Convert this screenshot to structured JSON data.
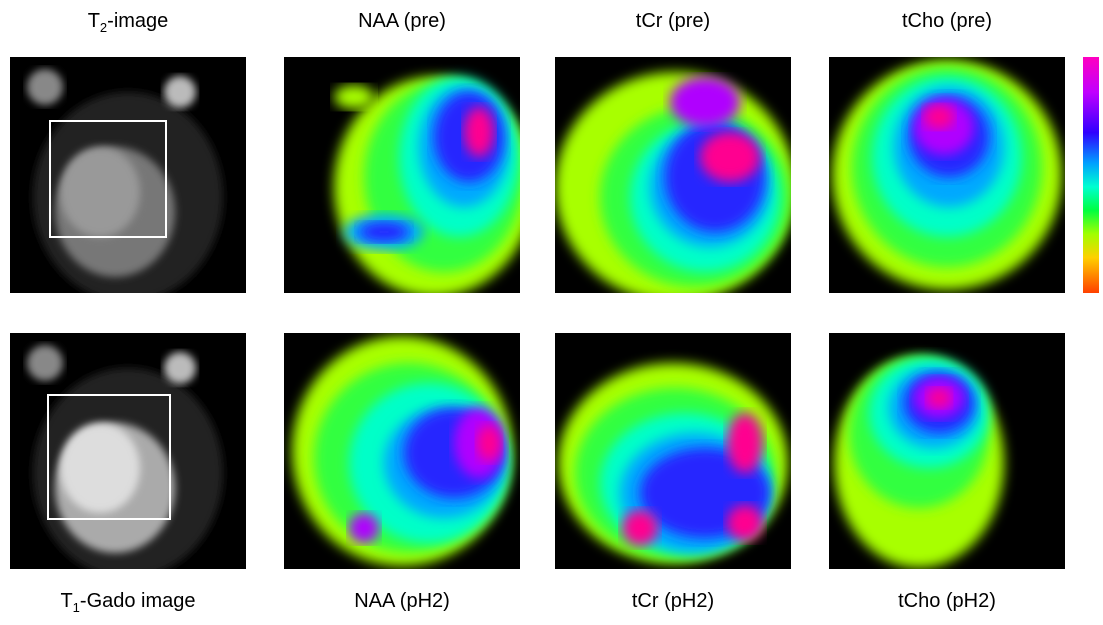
{
  "labels": {
    "top": [
      {
        "text": "T",
        "subscript": "2",
        "suffix": "-image"
      },
      {
        "text": "NAA (pre)"
      },
      {
        "text": "tCr (pre)"
      },
      {
        "text": "tCho (pre)"
      }
    ],
    "bottom": [
      {
        "text": "T",
        "subscript": "1",
        "suffix": "-Gado image"
      },
      {
        "text": "NAA (pH2)"
      },
      {
        "text": "tCr (pH2)"
      },
      {
        "text": "tCho (pH2)"
      }
    ]
  }
}
